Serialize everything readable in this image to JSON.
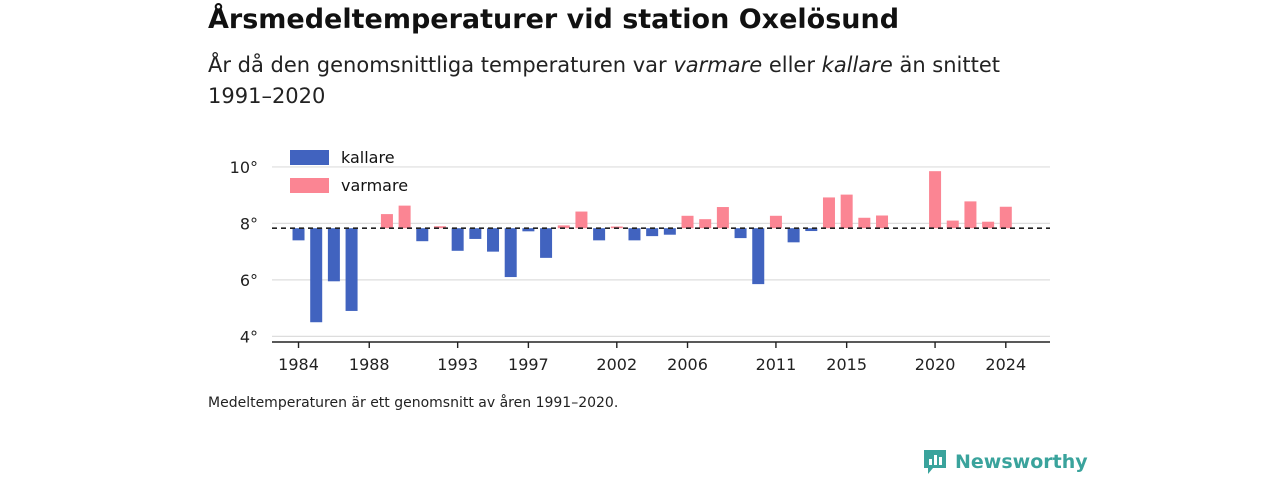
{
  "header": {
    "title": "Årsmedeltemperaturer vid station Oxelösund",
    "subtitle_pre": "År då den genomsnittliga temperaturen var ",
    "subtitle_em1": "varmare",
    "subtitle_mid": " eller ",
    "subtitle_em2": "kallare",
    "subtitle_post": " än snittet 1991–2020"
  },
  "footer": {
    "note": "Medeltemperaturen är ett genomsnitt av åren 1991–2020.",
    "brand": "Newsworthy"
  },
  "colors": {
    "kallare": "#4163bf",
    "varmare": "#fb8593",
    "grid": "#dddddd",
    "axis": "#222222",
    "brand": "#3aa39c"
  },
  "chart_data": {
    "type": "bar",
    "baseline": 7.83,
    "ylim": [
      3.8,
      10.6
    ],
    "yticks": [
      4,
      6,
      8,
      10
    ],
    "ytick_labels": [
      "4°",
      "6°",
      "8°",
      "10°"
    ],
    "xlim": [
      1982.5,
      2026.5
    ],
    "xticks": [
      1984,
      1988,
      1993,
      1997,
      2002,
      2006,
      2011,
      2015,
      2020,
      2024
    ],
    "legend": [
      {
        "key": "kallare",
        "label": "kallare"
      },
      {
        "key": "varmare",
        "label": "varmare"
      }
    ],
    "legend_position": "top-left",
    "grid": true,
    "series": [
      {
        "name": "kallare",
        "x": [
          1984,
          1985,
          1986,
          1987,
          1991,
          1993,
          1994,
          1995,
          1996,
          1997,
          1998,
          2001,
          2003,
          2004,
          2005,
          2009,
          2010,
          2012,
          2013
        ],
        "values": [
          7.4,
          4.5,
          5.95,
          4.9,
          7.37,
          7.03,
          7.45,
          7.0,
          6.1,
          7.72,
          6.78,
          7.4,
          7.4,
          7.55,
          7.6,
          7.48,
          5.85,
          7.33,
          7.73
        ]
      },
      {
        "name": "varmare",
        "x": [
          1989,
          1990,
          1992,
          1999,
          2000,
          2002,
          2006,
          2007,
          2008,
          2011,
          2014,
          2015,
          2016,
          2017,
          2020,
          2021,
          2022,
          2023,
          2024
        ],
        "values": [
          8.33,
          8.63,
          7.9,
          7.93,
          8.42,
          7.89,
          8.27,
          8.15,
          8.58,
          8.27,
          8.92,
          9.02,
          8.2,
          8.28,
          9.85,
          8.1,
          8.78,
          8.06,
          8.59
        ]
      }
    ]
  }
}
